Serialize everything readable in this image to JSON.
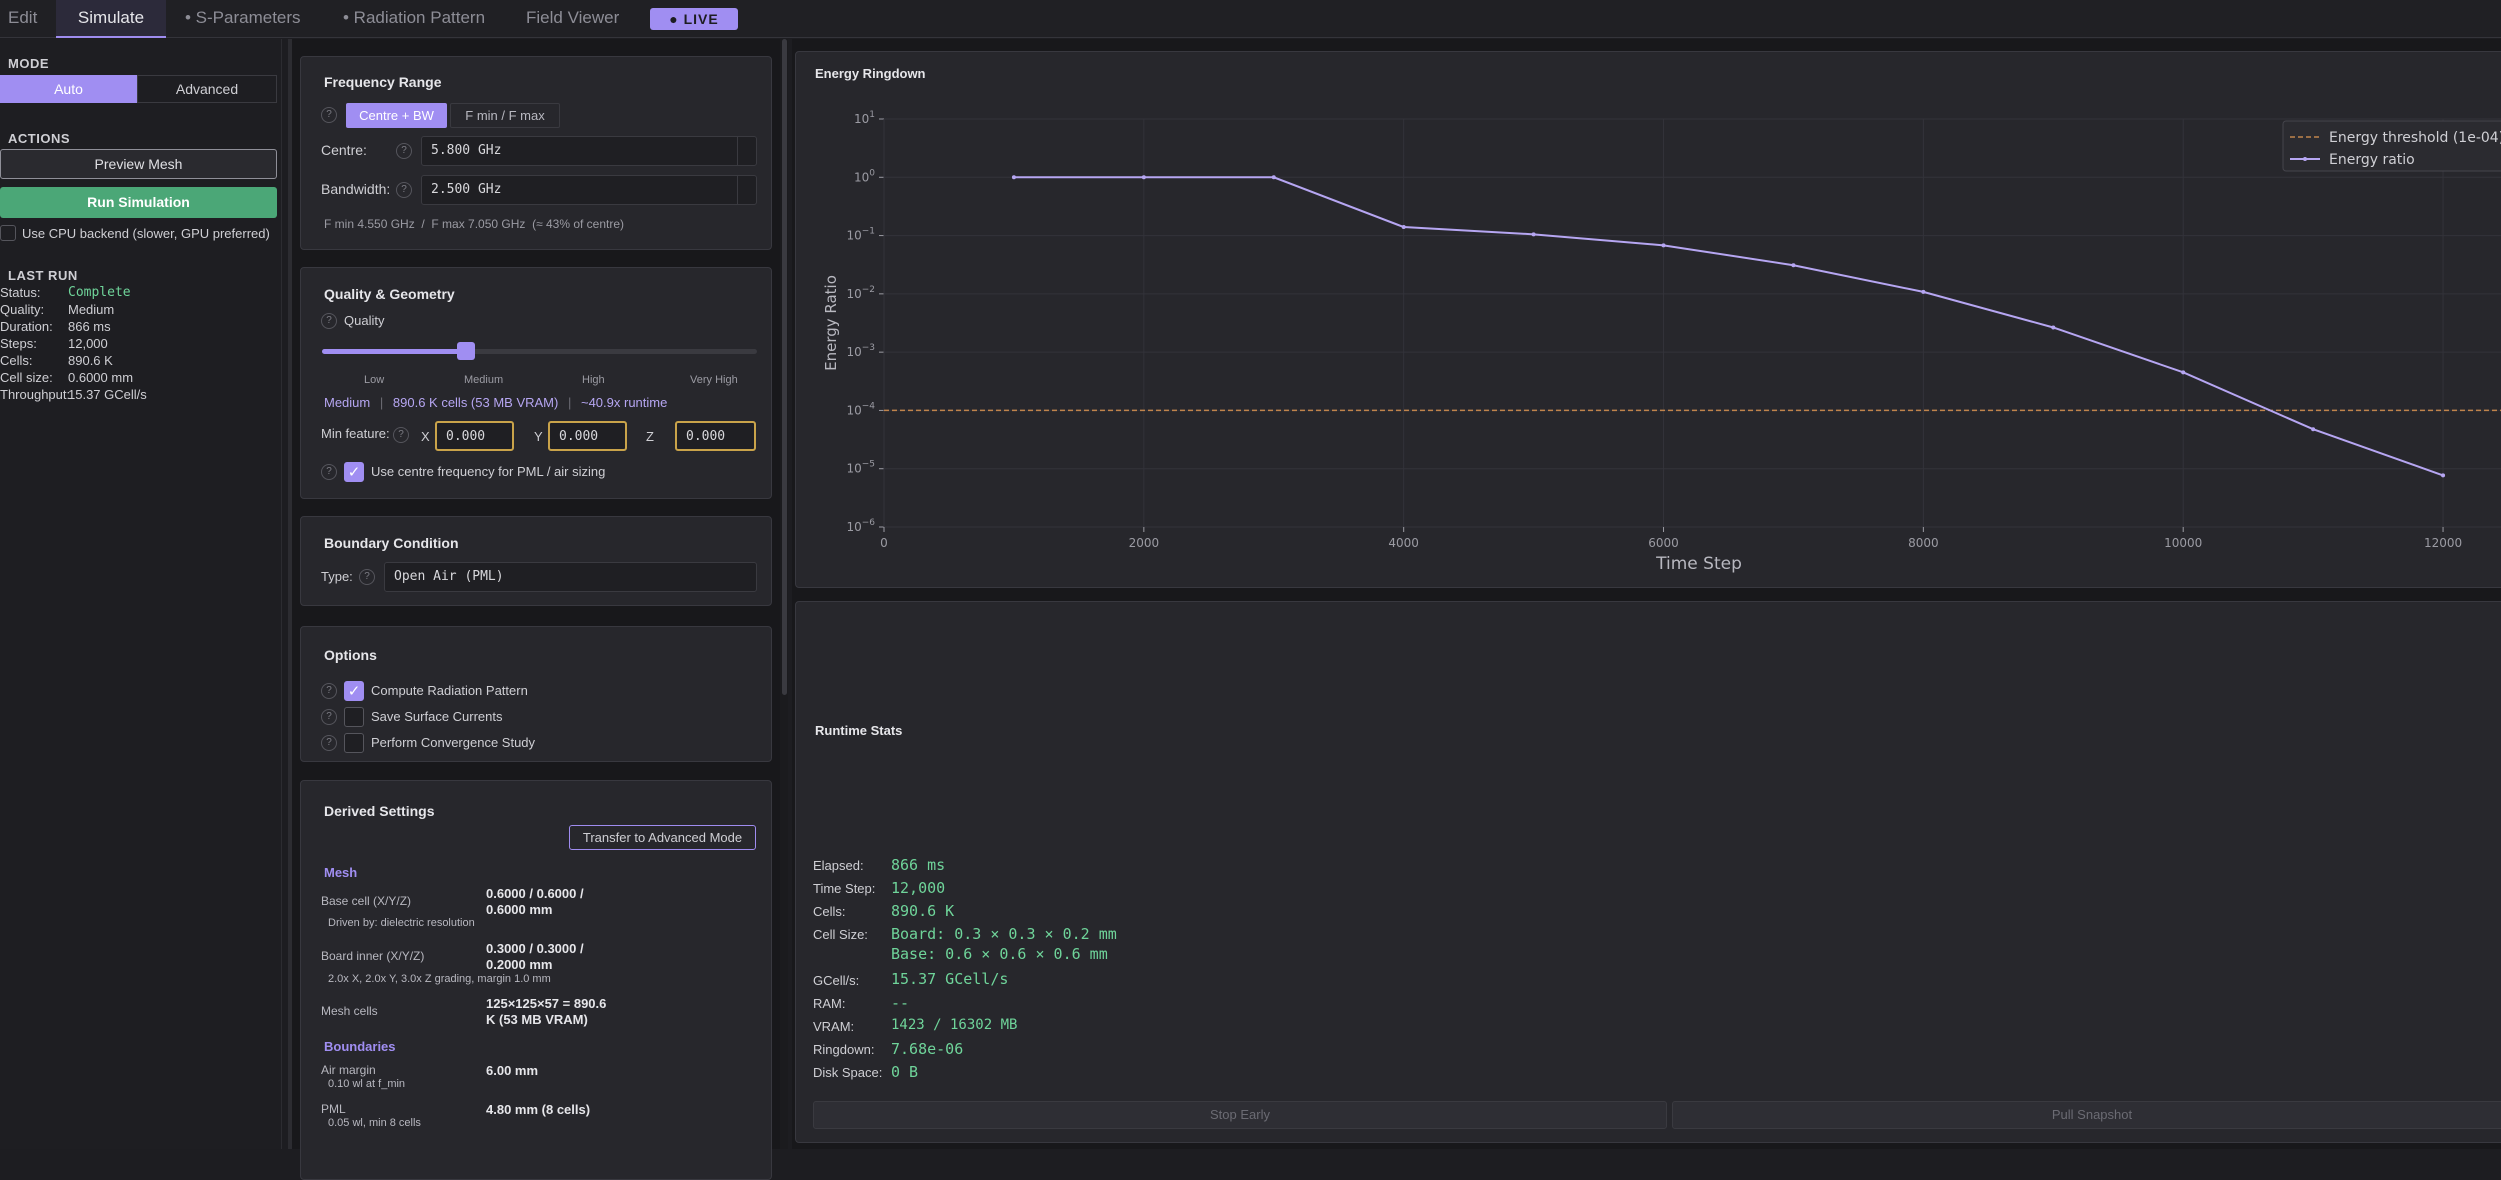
{
  "tabs": [
    {
      "label": "Edit"
    },
    {
      "label": "Simulate"
    },
    {
      "label": "• S-Parameters"
    },
    {
      "label": "• Radiation Pattern"
    },
    {
      "label": "Field Viewer"
    }
  ],
  "live_label": "● LIVE",
  "left": {
    "mode_title": "MODE",
    "mode_auto": "Auto",
    "mode_advanced": "Advanced",
    "actions_title": "ACTIONS",
    "preview_mesh": "Preview Mesh",
    "run_simulation": "Run Simulation",
    "cpu_backend": "Use CPU backend (slower, GPU preferred)",
    "last_run_title": "LAST RUN",
    "last_run": [
      {
        "key": "Status:",
        "value": "Complete"
      },
      {
        "key": "Quality:",
        "value": "Medium"
      },
      {
        "key": "Duration:",
        "value": "866 ms"
      },
      {
        "key": "Steps:",
        "value": "12,000"
      },
      {
        "key": "Cells:",
        "value": "890.6 K"
      },
      {
        "key": "Cell size:",
        "value": "0.6000 mm"
      },
      {
        "key": "Throughput:",
        "value": "15.37 GCell/s"
      }
    ]
  },
  "freq": {
    "title": "Frequency Range",
    "btn_centre": "Centre + BW",
    "btn_fminmax": "F min / F max",
    "centre_label": "Centre:",
    "centre_value": "5.800 GHz",
    "bw_label": "Bandwidth:",
    "bw_value": "2.500 GHz",
    "summary": "F min 4.550 GHz  /  F max 7.050 GHz  (≈ 43% of centre)"
  },
  "quality": {
    "title": "Quality & Geometry",
    "quality_label": "Quality",
    "slider_level": 0.33,
    "levels": [
      "Low",
      "Medium",
      "High",
      "Very High"
    ],
    "info_level": "Medium",
    "info_cells": "890.6 K cells (53 MB VRAM)",
    "info_runtime": "~40.9x runtime",
    "min_feature_label": "Min feature:",
    "x_label": "X",
    "y_label": "Y",
    "z_label": "Z",
    "x_value": "0.000",
    "y_value": "0.000",
    "z_value": "0.000",
    "use_centre": "Use centre frequency for PML / air sizing"
  },
  "boundary": {
    "title": "Boundary Condition",
    "type_label": "Type:",
    "type_value": "Open Air (PML)"
  },
  "options": {
    "title": "Options",
    "items": [
      {
        "label": "Compute Radiation Pattern"
      },
      {
        "label": "Save Surface Currents"
      },
      {
        "label": "Perform Convergence Study"
      }
    ]
  },
  "derived": {
    "title": "Derived Settings",
    "transfer_button": "Transfer to Advanced Mode",
    "mesh_title": "Mesh",
    "base_cell_label": "Base cell (X/Y/Z)",
    "base_cell_value_1": "0.6000 / 0.6000 /",
    "base_cell_value_2": "0.6000 mm",
    "base_cell_note": "Driven by: dielectric resolution",
    "board_inner_label": "Board inner (X/Y/Z)",
    "board_inner_value_1": "0.3000 / 0.3000 /",
    "board_inner_value_2": "0.2000 mm",
    "board_inner_note": "2.0x X, 2.0x Y, 3.0x Z grading, margin 1.0 mm",
    "mesh_cells_label": "Mesh cells",
    "mesh_cells_value_1": "125×125×57 = 890.6",
    "mesh_cells_value_2": "K (53 MB VRAM)",
    "boundaries_title": "Boundaries",
    "air_margin_label": "Air margin",
    "air_margin_value": "6.00 mm",
    "air_margin_note": "0.10 wl at f_min",
    "pml_label": "PML",
    "pml_value": "4.80 mm (8 cells)",
    "pml_note": "0.05 wl, min 8 cells"
  },
  "ringdown": {
    "panel_title": "Energy Ringdown"
  },
  "chart_data": {
    "type": "line",
    "xlabel": "Time Step",
    "ylabel": "Energy Ratio",
    "xlim": [
      0,
      12500
    ],
    "ylim_exp": [
      -6,
      1
    ],
    "yscale": "log",
    "x_ticks": [
      "0",
      "2000",
      "4000",
      "6000",
      "8000",
      "10000",
      "12000"
    ],
    "y_ticks_exp": [
      "1",
      "0",
      "-1",
      "-2",
      "-3",
      "-4",
      "-5",
      "-6"
    ],
    "grid": true,
    "legend_position": "top-right",
    "series": [
      {
        "name": "Energy ratio",
        "color": "#b6a6f2",
        "x": [
          1000,
          2000,
          3000,
          4000,
          5000,
          6000,
          7000,
          8000,
          9000,
          10000,
          11000,
          12000
        ],
        "y": [
          1.0,
          1.0,
          1.0,
          0.14,
          0.105,
          0.068,
          0.031,
          0.0108,
          0.00265,
          0.00045,
          4.76e-05,
          7.68e-06
        ]
      }
    ],
    "threshold": {
      "name": "Energy threshold (1e-04)",
      "value": 0.0001,
      "color": "#c0844c"
    }
  },
  "stats": {
    "title": "Runtime Stats",
    "rows": [
      {
        "key": "Elapsed:",
        "value": "866 ms"
      },
      {
        "key": "Time Step:",
        "value": "12,000"
      },
      {
        "key": "Cells:",
        "value": "890.6 K"
      },
      {
        "key": "Cell Size:",
        "value": "Board: 0.3 × 0.3 × 0.2 mm"
      },
      {
        "key": "",
        "value": "Base: 0.6 × 0.6 × 0.6 mm"
      },
      {
        "key": "GCell/s:",
        "value": "15.37 GCell/s"
      },
      {
        "key": "RAM:",
        "value": "--"
      },
      {
        "key": "VRAM:",
        "value": "1423 / 16302 MB"
      },
      {
        "key": "Ringdown:",
        "value": "7.68e-06"
      },
      {
        "key": "Disk Space:",
        "value": "0 B"
      }
    ],
    "stop_early": "Stop Early",
    "pull_snapshot": "Pull Snapshot"
  }
}
